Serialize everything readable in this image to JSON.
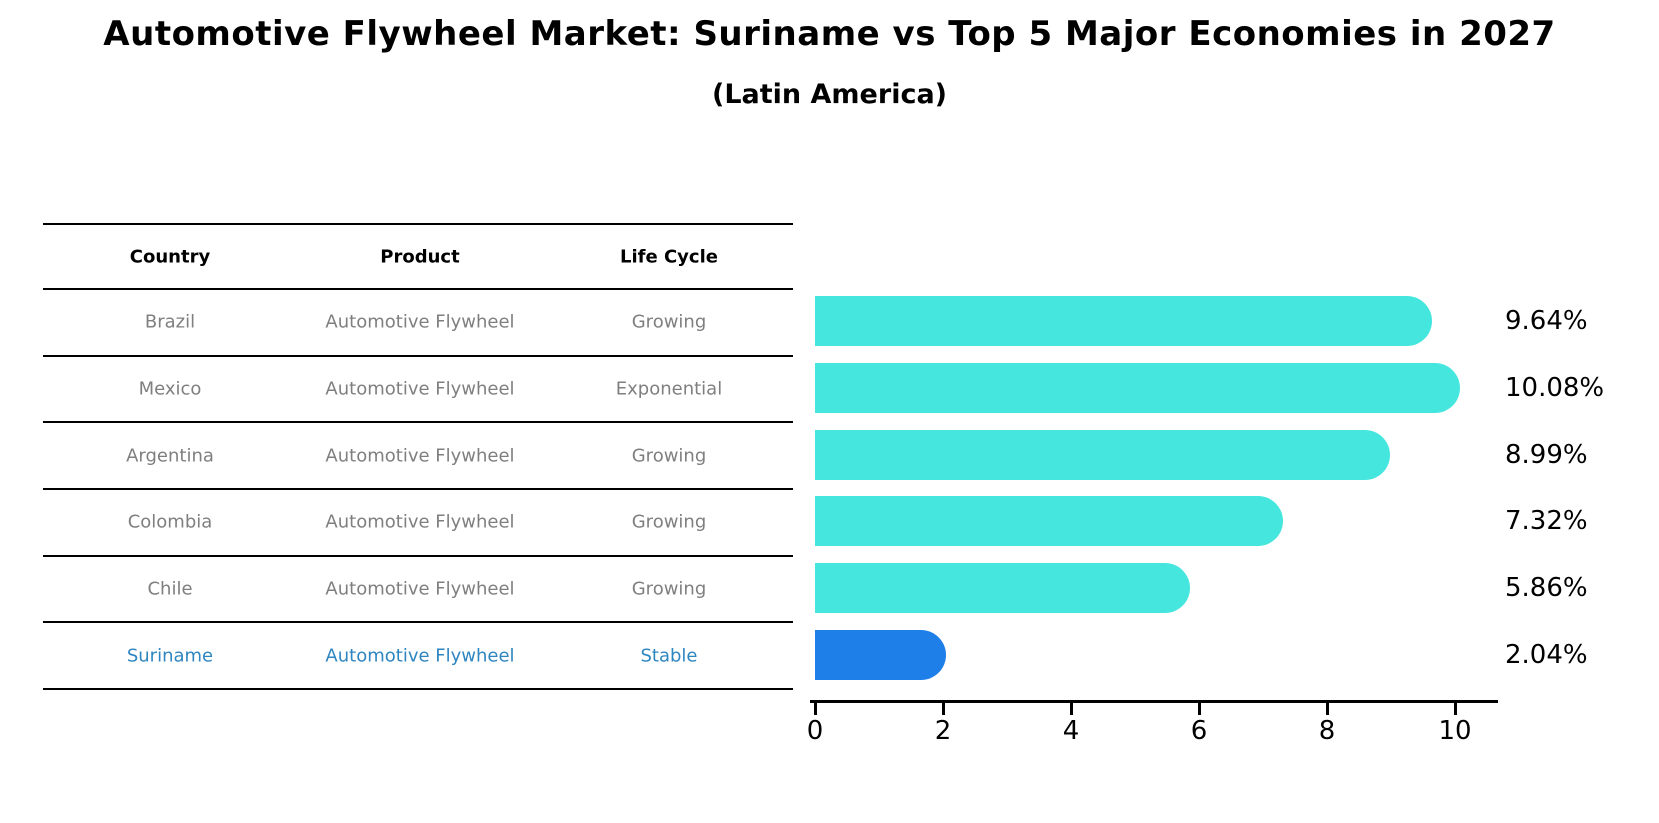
{
  "title": "Automotive Flywheel Market: Suriname vs Top 5 Major Economies in 2027",
  "subtitle": "(Latin America)",
  "table": {
    "headers": [
      "Country",
      "Product",
      "Life Cycle"
    ],
    "rows": [
      {
        "country": "Brazil",
        "product": "Automotive Flywheel",
        "life_cycle": "Growing",
        "highlight": false
      },
      {
        "country": "Mexico",
        "product": "Automotive Flywheel",
        "life_cycle": "Exponential",
        "highlight": false
      },
      {
        "country": "Argentina",
        "product": "Automotive Flywheel",
        "life_cycle": "Growing",
        "highlight": false
      },
      {
        "country": "Colombia",
        "product": "Automotive Flywheel",
        "life_cycle": "Growing",
        "highlight": false
      },
      {
        "country": "Chile",
        "product": "Automotive Flywheel",
        "life_cycle": "Growing",
        "highlight": false
      },
      {
        "country": "Suriname",
        "product": "Automotive Flywheel",
        "life_cycle": "Stable",
        "highlight": true
      }
    ]
  },
  "chart_data": {
    "type": "bar",
    "orientation": "horizontal",
    "title": "Automotive Flywheel Market: Suriname vs Top 5 Major Economies in 2027",
    "subtitle": "(Latin America)",
    "categories": [
      "Brazil",
      "Mexico",
      "Argentina",
      "Colombia",
      "Chile",
      "Suriname"
    ],
    "values": [
      9.64,
      10.08,
      8.99,
      7.32,
      5.86,
      2.04
    ],
    "value_labels": [
      "9.64%",
      "10.08%",
      "8.99%",
      "7.32%",
      "5.86%",
      "2.04%"
    ],
    "highlight_index": 5,
    "xticks": [
      0,
      2,
      4,
      6,
      8,
      10
    ],
    "xlim": [
      0,
      10.7
    ],
    "xlabel": "",
    "ylabel": "",
    "grid": false,
    "legend": false,
    "bar_color": "#45E6DE",
    "highlight_bar_color": "#1E7FE8",
    "highlight_border_style": "dotted"
  },
  "colors": {
    "bar": "#45E6DE",
    "highlight_bar": "#1E7FE8",
    "highlight_text": "#2E86C1",
    "row_text": "#7f7f7f",
    "header_text": "#000000",
    "axis": "#000000"
  }
}
